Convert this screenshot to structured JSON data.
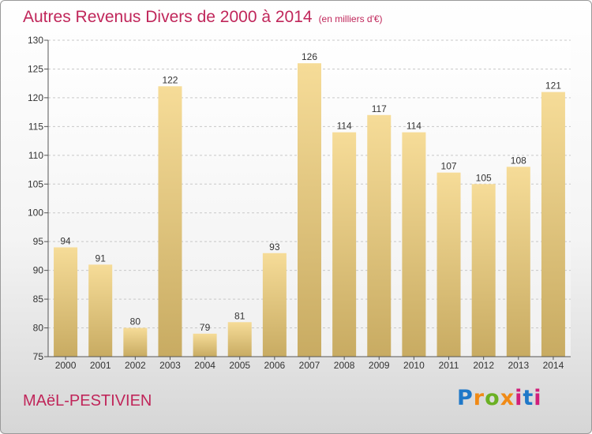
{
  "title": "Autres Revenus Divers de 2000 à 2014",
  "title_unit": "(en milliers d'€)",
  "commune": "MAëL-PESTIVIEN",
  "logo": {
    "letters": [
      "P",
      "r",
      "o",
      "x",
      "i",
      "t",
      "i"
    ],
    "colors": [
      "#1f78c8",
      "#f08a16",
      "#6ab023",
      "#f08a16",
      "#d11f7a",
      "#1f78c8",
      "#d11f7a"
    ]
  },
  "chart_data": {
    "type": "bar",
    "title": "Autres Revenus Divers de 2000 à 2014",
    "categories": [
      "2000",
      "2001",
      "2002",
      "2003",
      "2004",
      "2005",
      "2006",
      "2007",
      "2008",
      "2009",
      "2010",
      "2011",
      "2012",
      "2013",
      "2014"
    ],
    "values": [
      94,
      91,
      80,
      122,
      79,
      81,
      93,
      126,
      114,
      117,
      114,
      107,
      105,
      108,
      121
    ],
    "ylim": [
      75,
      130
    ],
    "yticks": [
      75,
      80,
      85,
      90,
      95,
      100,
      105,
      110,
      115,
      120,
      125,
      130
    ],
    "xlabel": "",
    "ylabel": "",
    "grid": "y dashed",
    "bar_color": "#e9cb7e"
  }
}
